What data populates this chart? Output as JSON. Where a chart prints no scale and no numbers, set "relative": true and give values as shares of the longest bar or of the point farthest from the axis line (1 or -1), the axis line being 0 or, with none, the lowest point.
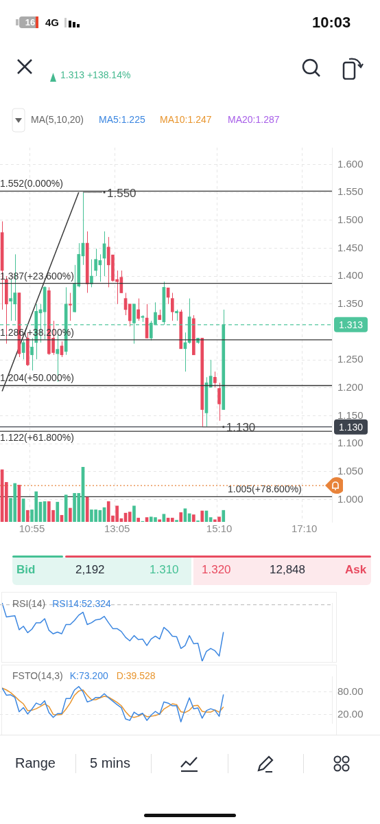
{
  "chart_data": [
    {
      "type": "other",
      "annotations": [
        "16",
        "4G",
        "10:03",
        "1.313 +138.14%",
        "MA(5,10,20)",
        "MA5:1.225",
        "MA10:1.247",
        "MA20:1.287"
      ]
    },
    {
      "type": "candlestick",
      "categories": [
        null,
        null,
        null,
        null,
        null,
        null,
        null,
        "10:55",
        null,
        null,
        null,
        null,
        null,
        null,
        null,
        null,
        null,
        null,
        null,
        null,
        null,
        null,
        null,
        null,
        null,
        null,
        null,
        "13:05",
        null,
        null,
        null,
        null,
        null,
        null,
        null,
        null,
        null,
        null,
        null,
        null,
        null,
        null,
        null,
        null,
        null,
        null,
        null,
        null,
        null,
        null,
        null,
        "15:10",
        null,
        null,
        null,
        null,
        null,
        null,
        null,
        null,
        null,
        null,
        null,
        null,
        null,
        null,
        null,
        null,
        null,
        null,
        null,
        "17:10",
        null,
        null,
        null,
        null,
        null,
        null
      ],
      "ohlc": [
        [
          1.478,
          1.498,
          1.34,
          1.41
        ],
        [
          1.394,
          1.4,
          1.279,
          1.35
        ],
        [
          1.355,
          1.394,
          1.32,
          1.36
        ],
        [
          1.35,
          1.439,
          1.32,
          1.37
        ],
        [
          1.37,
          1.37,
          1.255,
          1.261
        ],
        [
          1.263,
          1.285,
          1.251,
          1.281
        ],
        [
          1.289,
          1.299,
          1.239,
          1.241
        ],
        [
          1.259,
          1.289,
          1.231,
          1.273
        ],
        [
          1.281,
          1.35,
          1.251,
          1.337
        ],
        [
          1.334,
          1.35,
          1.281,
          1.34
        ],
        [
          1.336,
          1.382,
          1.287,
          1.38
        ],
        [
          1.374,
          1.38,
          1.259,
          1.261
        ],
        [
          1.289,
          1.32,
          1.259,
          1.263
        ],
        [
          1.261,
          1.297,
          1.211,
          1.269
        ],
        [
          1.275,
          1.283,
          1.255,
          1.259
        ],
        [
          1.265,
          1.38,
          1.259,
          1.35
        ],
        [
          1.35,
          1.37,
          1.32,
          1.348
        ],
        [
          1.336,
          1.42,
          1.335,
          1.386
        ],
        [
          1.382,
          1.459,
          1.38,
          1.439
        ],
        [
          1.436,
          1.55,
          1.42,
          1.459
        ],
        [
          1.459,
          1.48,
          1.37,
          1.386
        ],
        [
          1.386,
          1.43,
          1.38,
          1.4
        ],
        [
          1.41,
          1.449,
          1.4,
          1.43
        ],
        [
          1.42,
          1.439,
          1.39,
          1.428
        ],
        [
          1.432,
          1.48,
          1.4,
          1.458
        ],
        [
          1.452,
          1.47,
          1.38,
          1.42
        ],
        [
          1.438,
          1.438,
          1.39,
          1.392
        ],
        [
          1.394,
          1.41,
          1.35,
          1.39
        ],
        [
          1.398,
          1.41,
          1.37,
          1.37
        ],
        [
          1.36,
          1.37,
          1.33,
          1.34
        ],
        [
          1.35,
          1.35,
          1.31,
          1.32
        ],
        [
          1.316,
          1.35,
          1.279,
          1.35
        ],
        [
          1.34,
          1.36,
          1.32,
          1.324
        ],
        [
          1.326,
          1.33,
          1.318,
          1.328
        ],
        [
          1.325,
          1.35,
          1.289,
          1.289
        ],
        [
          1.289,
          1.32,
          1.285,
          1.316
        ],
        [
          1.313,
          1.353,
          1.313,
          1.335
        ],
        [
          1.33,
          1.34,
          1.322,
          1.322
        ],
        [
          1.318,
          1.39,
          1.313,
          1.38
        ],
        [
          1.379,
          1.379,
          1.35,
          1.362
        ],
        [
          1.36,
          1.37,
          1.32,
          1.336
        ],
        [
          1.334,
          1.34,
          1.32,
          1.337
        ],
        [
          1.336,
          1.34,
          1.27,
          1.27
        ],
        [
          1.27,
          1.299,
          1.229,
          1.281
        ],
        [
          1.281,
          1.36,
          1.279,
          1.327
        ],
        [
          1.324,
          1.33,
          1.259,
          1.259
        ],
        [
          1.281,
          1.289,
          1.279,
          1.289
        ],
        [
          1.289,
          1.289,
          1.131,
          1.161
        ],
        [
          1.155,
          1.219,
          1.131,
          1.209
        ],
        [
          1.201,
          1.25,
          1.201,
          1.221
        ],
        [
          1.219,
          1.229,
          1.201,
          1.209
        ],
        [
          1.199,
          1.209,
          1.141,
          1.171
        ],
        [
          1.161,
          1.34,
          1.161,
          1.313
        ],
        null,
        null,
        null,
        null,
        null,
        null,
        null,
        null,
        null,
        null,
        null,
        null,
        null,
        null,
        null,
        null,
        null,
        null,
        null,
        null,
        null,
        null,
        null,
        null,
        null
      ],
      "colors": [
        "#e84a5f",
        "#e84a5f",
        "#45c195",
        "#45c195",
        "#e84a5f",
        "#45c195",
        "#e84a5f",
        "#45c195",
        "#45c195",
        "#45c195",
        "#45c195",
        "#e84a5f",
        "#e84a5f",
        "#45c195",
        "#e84a5f",
        "#45c195",
        "#e84a5f",
        "#45c195",
        "#45c195",
        "#45c195",
        "#e84a5f",
        "#45c195",
        "#45c195",
        "#45c195",
        "#45c195",
        "#e84a5f",
        "#e84a5f",
        "#e84a5f",
        "#e84a5f",
        "#e84a5f",
        "#e84a5f",
        "#45c195",
        "#e84a5f",
        "#45c195",
        "#e84a5f",
        "#45c195",
        "#45c195",
        "#e84a5f",
        "#45c195",
        "#e84a5f",
        "#e84a5f",
        "#45c195",
        "#e84a5f",
        "#45c195",
        "#45c195",
        "#e84a5f",
        "#45c195",
        "#e84a5f",
        "#45c195",
        "#45c195",
        "#e84a5f",
        "#e84a5f",
        "#45c195",
        null,
        null,
        null,
        null,
        null,
        null,
        null,
        null,
        null,
        null,
        null,
        null,
        null,
        null,
        null,
        null,
        null,
        null,
        null,
        null,
        null,
        null,
        null,
        null,
        null
      ],
      "series": [
        {
          "type": "line",
          "color": "#3a3a3a",
          "values": [
            1.194,
            null,
            null,
            null,
            null,
            null,
            null,
            null,
            null,
            null,
            null,
            null,
            null,
            null,
            null,
            null,
            null,
            null,
            1.55,
            null,
            null,
            null,
            null,
            null,
            null,
            null,
            null,
            null,
            null,
            null,
            null,
            null,
            null,
            null,
            null,
            null,
            null,
            null,
            null,
            null,
            null,
            null,
            null,
            null,
            null,
            null,
            null,
            null,
            null,
            null,
            null,
            null,
            null,
            null,
            null,
            null,
            null,
            null,
            null,
            null,
            null,
            null,
            null,
            null,
            null,
            null,
            null,
            null,
            null,
            null,
            null,
            null,
            null,
            null,
            null,
            null,
            null,
            null
          ]
        }
      ],
      "ylim": [
        0.96,
        1.63
      ],
      "yticks": [
        {
          "value": 1.0,
          "label": "1.000"
        },
        {
          "value": 1.05,
          "label": "1.050"
        },
        {
          "value": 1.1,
          "label": "1.100"
        },
        {
          "value": 1.15,
          "label": "1.150"
        },
        {
          "value": 1.2,
          "label": "1.200"
        },
        {
          "value": 1.25,
          "label": "1.250"
        },
        {
          "value": 1.35,
          "label": "1.350"
        },
        {
          "value": 1.4,
          "label": "1.400"
        },
        {
          "value": 1.45,
          "label": "1.450"
        },
        {
          "value": 1.5,
          "label": "1.500"
        },
        {
          "value": 1.55,
          "label": "1.550"
        },
        {
          "value": 1.6,
          "label": "1.600"
        }
      ],
      "grid": true,
      "ref_lines": [
        {
          "axis": "y",
          "value": 1.552,
          "label": "1.552(0.000%)"
        },
        {
          "axis": "y",
          "value": 1.387,
          "label": "1.387(+23.600%)"
        },
        {
          "axis": "y",
          "value": 1.286,
          "label": "1.286(+38.200%)"
        },
        {
          "axis": "y",
          "value": 1.204,
          "label": "1.204(+50.000%)"
        },
        {
          "axis": "y",
          "value": 1.122,
          "label": "1.122(+61.800%)"
        },
        {
          "axis": "y",
          "value": 1.005,
          "label": "1.005(+78.600%)"
        },
        {
          "axis": "y",
          "value": 1.13,
          "label": "1.130",
          "color": "#3d434d"
        },
        {
          "axis": "y",
          "value": 1.313,
          "label": "1.313",
          "color": "#4fc59c",
          "line_style": "dashed"
        },
        {
          "axis": "y",
          "value": 1.025,
          "label": null,
          "color": "#e8833a",
          "line_style": "dotted"
        }
      ],
      "annotations": [
        {
          "text": "1.550",
          "y": 1.55
        },
        {
          "text": "1.130",
          "y": 1.13
        }
      ]
    },
    {
      "type": "bar",
      "categories": [
        null,
        null,
        null,
        null,
        null,
        null,
        null,
        null,
        null,
        null,
        null,
        null,
        null,
        null,
        null,
        null,
        null,
        null,
        null,
        null,
        null,
        null,
        null,
        null,
        null,
        null,
        null,
        null,
        null,
        null,
        null,
        null,
        null,
        null,
        null,
        null,
        null,
        null,
        null,
        null,
        null,
        null,
        null,
        null,
        null,
        null,
        null,
        null,
        null,
        null,
        null,
        null,
        null,
        null,
        null,
        null,
        null,
        null,
        null,
        null,
        null,
        null,
        null,
        null,
        null,
        null,
        null,
        null,
        null,
        null,
        null,
        null,
        null,
        null,
        null,
        null,
        null,
        null
      ],
      "values": [
        0.95,
        0.72,
        0.43,
        0.7,
        0.67,
        0.42,
        0.21,
        0.22,
        0.55,
        0.36,
        0.37,
        0.37,
        0.21,
        0.36,
        0.12,
        0.49,
        0.25,
        0.52,
        0.52,
        1,
        0.45,
        0.22,
        0.22,
        0.21,
        0.26,
        0.37,
        0.11,
        0.29,
        0.06,
        0.16,
        0.18,
        0.29,
        0.07,
        0.01,
        0.08,
        0.09,
        0.08,
        0.04,
        0.14,
        0.07,
        0.07,
        0.03,
        0.17,
        0.24,
        0.15,
        0.13,
        0.02,
        0.2,
        0.2,
        0.08,
        0.04,
        0.09,
        0.21,
        null,
        null,
        null,
        null,
        null,
        null,
        null,
        null,
        null,
        null,
        null,
        null,
        null,
        null,
        null,
        null,
        null,
        null,
        null,
        null,
        null,
        null,
        null,
        null,
        null
      ],
      "colors": [
        "#e84a5f",
        "#e84a5f",
        "#45c195",
        "#45c195",
        "#e84a5f",
        "#45c195",
        "#e84a5f",
        "#45c195",
        "#45c195",
        "#45c195",
        "#45c195",
        "#e84a5f",
        "#e84a5f",
        "#45c195",
        "#e84a5f",
        "#45c195",
        "#e84a5f",
        "#45c195",
        "#45c195",
        "#45c195",
        "#e84a5f",
        "#45c195",
        "#45c195",
        "#45c195",
        "#45c195",
        "#e84a5f",
        "#e84a5f",
        "#e84a5f",
        "#e84a5f",
        "#e84a5f",
        "#e84a5f",
        "#45c195",
        "#e84a5f",
        "#45c195",
        "#e84a5f",
        "#45c195",
        "#45c195",
        "#e84a5f",
        "#45c195",
        "#e84a5f",
        "#e84a5f",
        "#45c195",
        "#e84a5f",
        "#45c195",
        "#45c195",
        "#e84a5f",
        "#45c195",
        "#e84a5f",
        "#45c195",
        "#45c195",
        "#e84a5f",
        "#e84a5f",
        "#45c195",
        null,
        null,
        null,
        null,
        null,
        null,
        null,
        null,
        null,
        null,
        null,
        null,
        null,
        null,
        null,
        null,
        null,
        null,
        null,
        null,
        null,
        null,
        null,
        null,
        null
      ],
      "relative": true,
      "tick_labels": false
    },
    {
      "type": "other",
      "annotations": [
        "Bid",
        "2,192",
        "1.310",
        "1.320",
        "12,848",
        "Ask"
      ]
    },
    {
      "type": "line",
      "title": "RSI(14)",
      "categories": [
        null,
        null,
        null,
        null,
        null,
        null,
        null,
        null,
        null,
        null,
        null,
        null,
        null,
        null,
        null,
        null,
        null,
        null,
        null,
        null,
        null,
        null,
        null,
        null,
        null,
        null,
        null,
        null,
        null,
        null,
        null,
        null,
        null,
        null,
        null,
        null,
        null,
        null,
        null,
        null,
        null,
        null,
        null,
        null,
        null,
        null,
        null,
        null,
        null,
        null,
        null,
        null,
        null,
        null,
        null,
        null,
        null,
        null,
        null,
        null,
        null,
        null,
        null,
        null,
        null,
        null,
        null,
        null,
        null,
        null,
        null,
        null,
        null,
        null,
        null,
        null,
        null,
        null
      ],
      "series": [
        {
          "name": "RSI14:52.324",
          "color": "#3b86e0",
          "values": [
            1.0,
            0.76,
            0.77,
            0.78,
            0.54,
            0.6,
            0.49,
            0.55,
            0.66,
            0.66,
            0.73,
            0.53,
            0.47,
            0.5,
            0.47,
            0.63,
            0.63,
            0.7,
            0.79,
            0.84,
            0.63,
            0.66,
            0.71,
            0.72,
            0.77,
            0.66,
            0.56,
            0.56,
            0.51,
            0.41,
            0.35,
            0.44,
            0.37,
            0.38,
            0.27,
            0.38,
            0.43,
            0.38,
            0.58,
            0.52,
            0.43,
            0.42,
            0.22,
            0.27,
            0.44,
            0.3,
            0.31,
            0,
            0.17,
            0.22,
            0.18,
            0.09,
            0.5,
            null,
            null,
            null,
            null,
            null,
            null,
            null,
            null,
            null,
            null,
            null,
            null,
            null,
            null,
            null,
            null,
            null,
            null,
            null,
            null,
            null,
            null,
            null,
            null,
            null
          ]
        }
      ],
      "relative": true,
      "tick_labels": false,
      "legend": "top left",
      "ref_lines": [
        {
          "axis": "y",
          "value": 0.97,
          "color": "#c4c4c4",
          "line_style": "dashed"
        }
      ]
    },
    {
      "type": "line",
      "title": "FSTO(14,3)",
      "categories": [
        null,
        null,
        null,
        null,
        null,
        null,
        null,
        null,
        null,
        null,
        null,
        null,
        null,
        null,
        null,
        null,
        null,
        null,
        null,
        null,
        null,
        null,
        null,
        null,
        null,
        null,
        null,
        null,
        null,
        null,
        null,
        null,
        null,
        null,
        null,
        null,
        null,
        null,
        null,
        null,
        null,
        null,
        null,
        null,
        null,
        null,
        null,
        null,
        null,
        null,
        null,
        null,
        null,
        null,
        null,
        null,
        null,
        null,
        null,
        null,
        null,
        null,
        null,
        null,
        null,
        null,
        null,
        null,
        null,
        null,
        null,
        null,
        null,
        null,
        null,
        null,
        null,
        null
      ],
      "series": [
        {
          "name": "K:73.200",
          "color": "#3b86e0",
          "values": [
            90,
            71,
            72,
            65,
            27,
            38,
            21,
            34,
            50,
            45,
            56,
            25,
            12,
            22,
            22,
            62,
            62,
            85,
            94,
            80,
            53,
            57,
            65,
            65,
            75,
            64,
            55,
            46,
            38,
            8,
            4,
            26,
            18,
            23,
            4,
            18,
            28,
            20,
            53,
            50,
            43,
            43,
            0,
            34,
            64,
            35,
            37,
            10,
            30,
            35,
            31,
            15,
            73,
            null,
            null,
            null,
            null,
            null,
            null,
            null,
            null,
            null,
            null,
            null,
            null,
            null,
            null,
            null,
            null,
            null,
            null,
            null,
            null,
            null,
            null,
            null,
            null,
            null
          ]
        },
        {
          "name": "D:39.528",
          "color": "#e8952e",
          "values": [
            90,
            85,
            78,
            68,
            57,
            48,
            30,
            31,
            35,
            41,
            48,
            41,
            20,
            19,
            20,
            34,
            50,
            71,
            82,
            85,
            71,
            59,
            59,
            64,
            68,
            66,
            59,
            52,
            43,
            27,
            15,
            12,
            15,
            21,
            14,
            15,
            17,
            21,
            34,
            41,
            48,
            46,
            27,
            25,
            31,
            43,
            44,
            28,
            26,
            26,
            32,
            26,
            40,
            null,
            null,
            null,
            null,
            null,
            null,
            null,
            null,
            null,
            null,
            null,
            null,
            null,
            null,
            null,
            null,
            null,
            null,
            null,
            null,
            null,
            null,
            null,
            null,
            null
          ]
        }
      ],
      "ylim": [
        -3,
        121
      ],
      "yticks": [
        {
          "value": 80,
          "label": "80.00"
        },
        {
          "value": 20,
          "label": "20.00"
        }
      ],
      "grid": "y",
      "tick_labels": "y",
      "legend": "top left"
    },
    {
      "type": "other",
      "annotations": [
        "Range",
        "5 mins"
      ]
    }
  ]
}
